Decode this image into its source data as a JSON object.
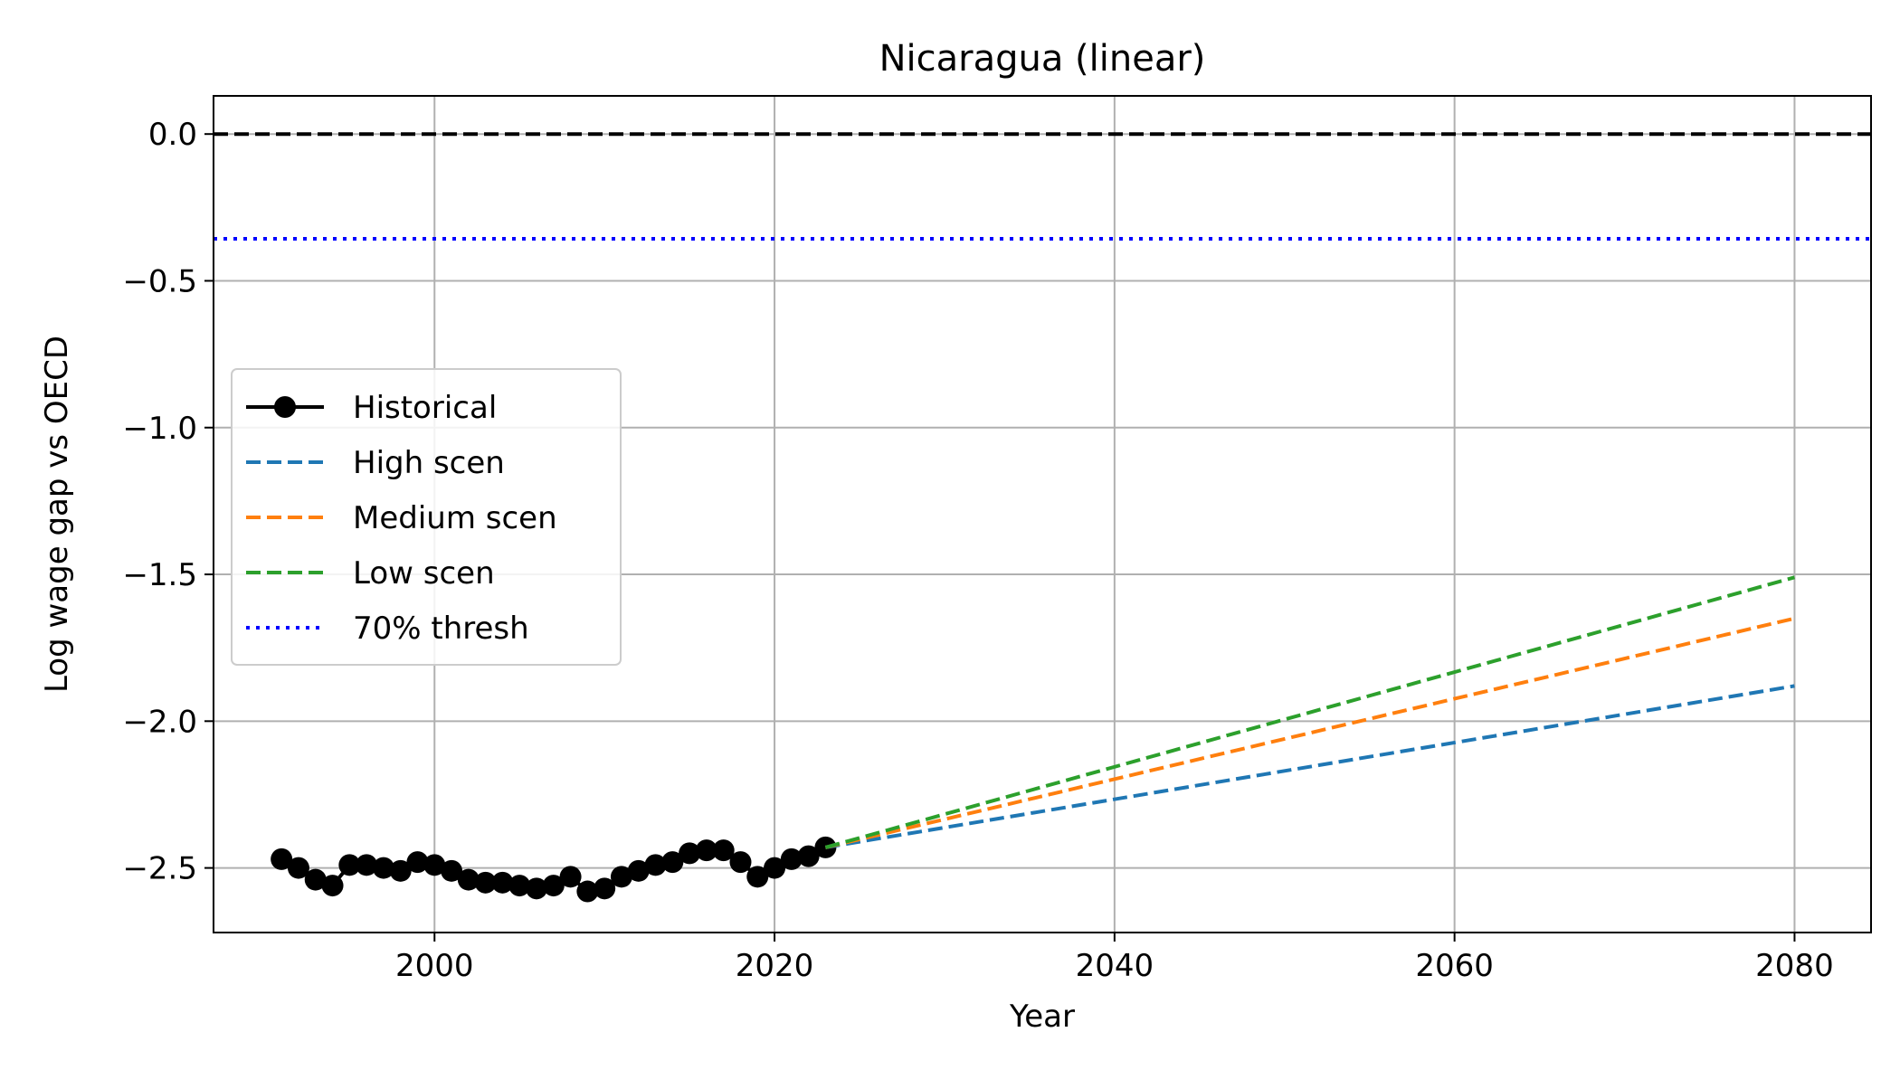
{
  "chart_data": {
    "type": "line",
    "title": "Nicaragua (linear)",
    "xlabel": "Year",
    "ylabel": "Log wage gap vs OECD",
    "xlim": [
      1987,
      2084.5
    ],
    "ylim": [
      -2.72,
      0.13
    ],
    "xticks": [
      2000,
      2020,
      2040,
      2060,
      2080
    ],
    "yticks": [
      0.0,
      -0.5,
      -1.0,
      -1.5,
      -2.0,
      -2.5
    ],
    "ytick_labels": [
      "0.0",
      "−0.5",
      "−1.0",
      "−1.5",
      "−2.0",
      "−2.5"
    ],
    "grid": true,
    "legend_position": "center-left",
    "series": [
      {
        "name": "Historical",
        "color": "#000000",
        "style": "solid-markers",
        "x": [
          1991,
          1992,
          1993,
          1994,
          1995,
          1996,
          1997,
          1998,
          1999,
          2000,
          2001,
          2002,
          2003,
          2004,
          2005,
          2006,
          2007,
          2008,
          2009,
          2010,
          2011,
          2012,
          2013,
          2014,
          2015,
          2016,
          2017,
          2018,
          2019,
          2020,
          2021,
          2022,
          2023
        ],
        "y": [
          -2.47,
          -2.5,
          -2.54,
          -2.56,
          -2.49,
          -2.49,
          -2.5,
          -2.51,
          -2.48,
          -2.49,
          -2.51,
          -2.54,
          -2.55,
          -2.55,
          -2.56,
          -2.57,
          -2.56,
          -2.53,
          -2.58,
          -2.57,
          -2.53,
          -2.51,
          -2.49,
          -2.48,
          -2.45,
          -2.44,
          -2.44,
          -2.48,
          -2.53,
          -2.5,
          -2.47,
          -2.46,
          -2.43
        ]
      },
      {
        "name": "High scen",
        "color": "#1f77b4",
        "style": "dashed",
        "x": [
          2023,
          2080
        ],
        "y": [
          -2.43,
          -1.88
        ]
      },
      {
        "name": "Medium scen",
        "color": "#ff7f0e",
        "style": "dashed",
        "x": [
          2023,
          2080
        ],
        "y": [
          -2.43,
          -1.65
        ]
      },
      {
        "name": "Low scen",
        "color": "#2ca02c",
        "style": "dashed",
        "x": [
          2023,
          2080
        ],
        "y": [
          -2.43,
          -1.51
        ]
      }
    ],
    "reference_lines": [
      {
        "name": "",
        "orientation": "horizontal",
        "y": 0.0,
        "color": "#000000",
        "style": "dashed"
      },
      {
        "name": "70% thresh",
        "orientation": "horizontal",
        "y": -0.357,
        "color": "#0000ff",
        "style": "dotted"
      }
    ],
    "legend": [
      "Historical",
      "High scen",
      "Medium scen",
      "Low scen",
      "70% thresh"
    ]
  }
}
